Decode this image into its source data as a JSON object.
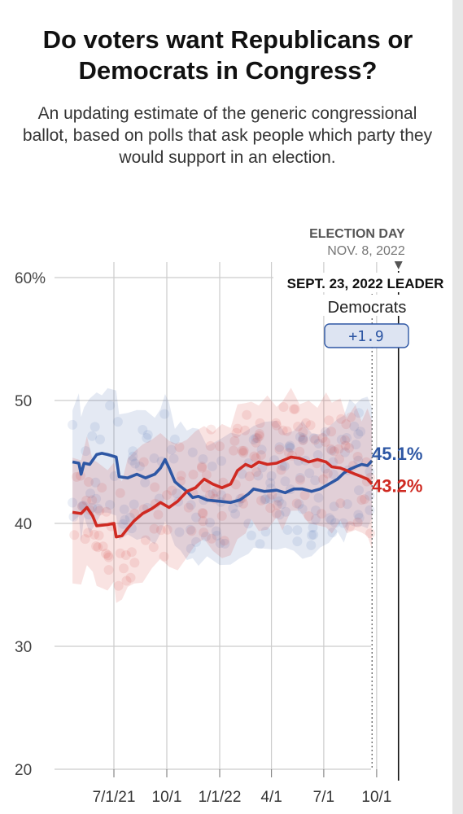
{
  "title": "Do voters want Republicans or Democrats in Congress?",
  "subtitle": "An updating estimate of the generic congressional ballot, based on polls that ask people which party they would support in an election.",
  "election": {
    "label": "ELECTION DAY",
    "date": "NOV. 8, 2022"
  },
  "leader": {
    "label": "SEPT. 23, 2022 LEADER",
    "party": "Democrats",
    "margin": "+1.9"
  },
  "colors": {
    "democrats": "#2e57a4",
    "republicans": "#cf2a22",
    "grid": "#cccccc"
  },
  "chart_data": {
    "type": "line",
    "x_tick_labels": [
      "7/1/21",
      "10/1",
      "1/1/22",
      "4/1",
      "7/1",
      "10/1"
    ],
    "y_tick_labels": [
      "20",
      "30",
      "40",
      "50",
      "60%"
    ],
    "ylim": [
      20,
      60
    ],
    "grid": true,
    "series": [
      {
        "party": "democrats",
        "end_label": "45.1%",
        "points": [
          [
            "2021-04-20",
            45.0
          ],
          [
            "2021-05-01",
            44.9
          ],
          [
            "2021-05-05",
            44.0
          ],
          [
            "2021-05-10",
            44.9
          ],
          [
            "2021-05-20",
            44.8
          ],
          [
            "2021-06-01",
            45.6
          ],
          [
            "2021-06-10",
            45.7
          ],
          [
            "2021-06-20",
            45.6
          ],
          [
            "2021-07-05",
            45.4
          ],
          [
            "2021-07-10",
            43.8
          ],
          [
            "2021-07-25",
            43.7
          ],
          [
            "2021-08-10",
            44.0
          ],
          [
            "2021-08-25",
            43.7
          ],
          [
            "2021-09-10",
            44.0
          ],
          [
            "2021-09-20",
            44.5
          ],
          [
            "2021-09-28",
            45.2
          ],
          [
            "2021-10-05",
            44.5
          ],
          [
            "2021-10-15",
            43.4
          ],
          [
            "2021-10-25",
            43.0
          ],
          [
            "2021-11-05",
            42.6
          ],
          [
            "2021-11-15",
            42.1
          ],
          [
            "2021-11-25",
            42.2
          ],
          [
            "2021-12-10",
            41.9
          ],
          [
            "2022-01-01",
            41.8
          ],
          [
            "2022-01-20",
            41.7
          ],
          [
            "2022-02-05",
            41.9
          ],
          [
            "2022-02-20",
            42.4
          ],
          [
            "2022-03-01",
            42.8
          ],
          [
            "2022-03-20",
            42.6
          ],
          [
            "2022-04-10",
            42.7
          ],
          [
            "2022-04-25",
            42.5
          ],
          [
            "2022-05-10",
            42.8
          ],
          [
            "2022-05-25",
            42.8
          ],
          [
            "2022-06-10",
            42.6
          ],
          [
            "2022-06-25",
            42.8
          ],
          [
            "2022-07-10",
            43.2
          ],
          [
            "2022-07-25",
            43.6
          ],
          [
            "2022-08-05",
            44.1
          ],
          [
            "2022-08-15",
            44.4
          ],
          [
            "2022-08-25",
            44.6
          ],
          [
            "2022-09-05",
            44.8
          ],
          [
            "2022-09-15",
            44.7
          ],
          [
            "2022-09-23",
            45.1
          ]
        ]
      },
      {
        "party": "republicans",
        "end_label": "43.2%",
        "points": [
          [
            "2021-04-20",
            40.9
          ],
          [
            "2021-05-05",
            40.8
          ],
          [
            "2021-05-15",
            41.3
          ],
          [
            "2021-05-25",
            40.6
          ],
          [
            "2021-06-01",
            39.8
          ],
          [
            "2021-06-20",
            39.9
          ],
          [
            "2021-07-01",
            40.0
          ],
          [
            "2021-07-05",
            38.9
          ],
          [
            "2021-07-15",
            39.0
          ],
          [
            "2021-07-25",
            39.6
          ],
          [
            "2021-08-05",
            40.2
          ],
          [
            "2021-08-20",
            40.8
          ],
          [
            "2021-09-05",
            41.2
          ],
          [
            "2021-09-20",
            41.7
          ],
          [
            "2021-10-05",
            41.3
          ],
          [
            "2021-10-20",
            41.8
          ],
          [
            "2021-11-05",
            42.6
          ],
          [
            "2021-11-20",
            42.9
          ],
          [
            "2021-12-05",
            43.6
          ],
          [
            "2021-12-20",
            43.2
          ],
          [
            "2022-01-05",
            42.9
          ],
          [
            "2022-01-20",
            43.2
          ],
          [
            "2022-02-01",
            44.3
          ],
          [
            "2022-02-15",
            44.8
          ],
          [
            "2022-02-25",
            44.6
          ],
          [
            "2022-03-10",
            45.0
          ],
          [
            "2022-03-25",
            44.8
          ],
          [
            "2022-04-10",
            44.9
          ],
          [
            "2022-04-20",
            45.1
          ],
          [
            "2022-05-05",
            45.4
          ],
          [
            "2022-05-20",
            45.3
          ],
          [
            "2022-06-05",
            45.0
          ],
          [
            "2022-06-20",
            45.2
          ],
          [
            "2022-07-05",
            45.0
          ],
          [
            "2022-07-15",
            44.6
          ],
          [
            "2022-07-30",
            44.5
          ],
          [
            "2022-08-10",
            44.3
          ],
          [
            "2022-08-25",
            44.0
          ],
          [
            "2022-09-05",
            43.8
          ],
          [
            "2022-09-15",
            43.6
          ],
          [
            "2022-09-23",
            43.2
          ]
        ]
      }
    ]
  }
}
